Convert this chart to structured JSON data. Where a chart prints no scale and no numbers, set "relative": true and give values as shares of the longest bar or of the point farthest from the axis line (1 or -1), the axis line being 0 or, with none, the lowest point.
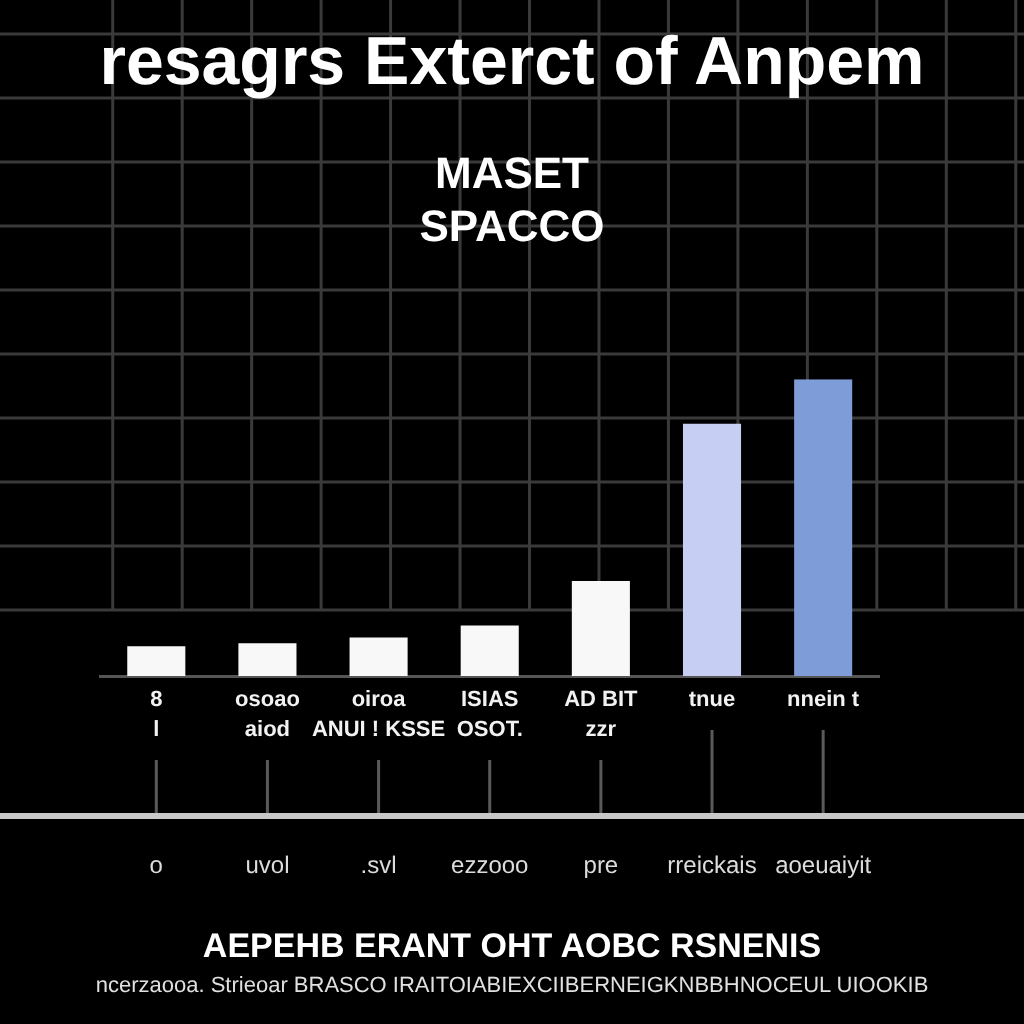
{
  "chart_data": {
    "type": "bar",
    "title": "resagrs Exterct of Anpem",
    "subtitle": "MASET\nSPACCO",
    "annotations": [
      {
        "text": "8\nl",
        "x": "o"
      },
      {
        "text": "osoao\naiod",
        "x": "uvol"
      },
      {
        "text": "oiroa\nANUI ! KSSE",
        "x": ".svl"
      },
      {
        "text": "ISIAS\nOSOT.",
        "x": "ezzooo"
      },
      {
        "text": "AD BIT\nzzr",
        "x": "pre"
      },
      {
        "text": "tnue",
        "x": "rreickais"
      },
      {
        "text": "nnein t",
        "x": "aoeuaiyit"
      },
      "AEPEHB ERANT OHT AOBC RSNENIS",
      "ncerzaooa. Strieoar BRASCO IRAITOIABIEXCIIBERNEIGKNBBHNOCEUL UIOOKIB"
    ],
    "categories": [
      "o",
      "uvol",
      ".svl",
      "ezzooo",
      "pre",
      "rreickais",
      "aoeuaiyit"
    ],
    "values": [
      0.1,
      0.11,
      0.13,
      0.17,
      0.32,
      0.85,
      1
    ],
    "colors": [
      "#f8f8f8",
      "#f8f8f8",
      "#f8f8f8",
      "#f8f8f8",
      "#f8f8f8",
      "#c6cef3",
      "#7e9cd8"
    ],
    "relative": true,
    "grid": true
  }
}
